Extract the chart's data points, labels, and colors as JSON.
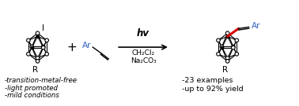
{
  "bg_color": "#ffffff",
  "text_color": "#000000",
  "blue_color": "#3060C0",
  "red_color": "#DD0000",
  "reaction_arrow_label_top": "hv",
  "reaction_arrow_label_mid1": "CH₂Cl₂",
  "reaction_arrow_label_mid2": "Na₂CO₃",
  "bullet1": "-transition-metal-free",
  "bullet2": "-light promoted",
  "bullet3": "-mild conditions",
  "result1": "-23 examples",
  "result2": "-up to 92% yield",
  "figsize": [
    3.78,
    1.35
  ],
  "dpi": 100
}
